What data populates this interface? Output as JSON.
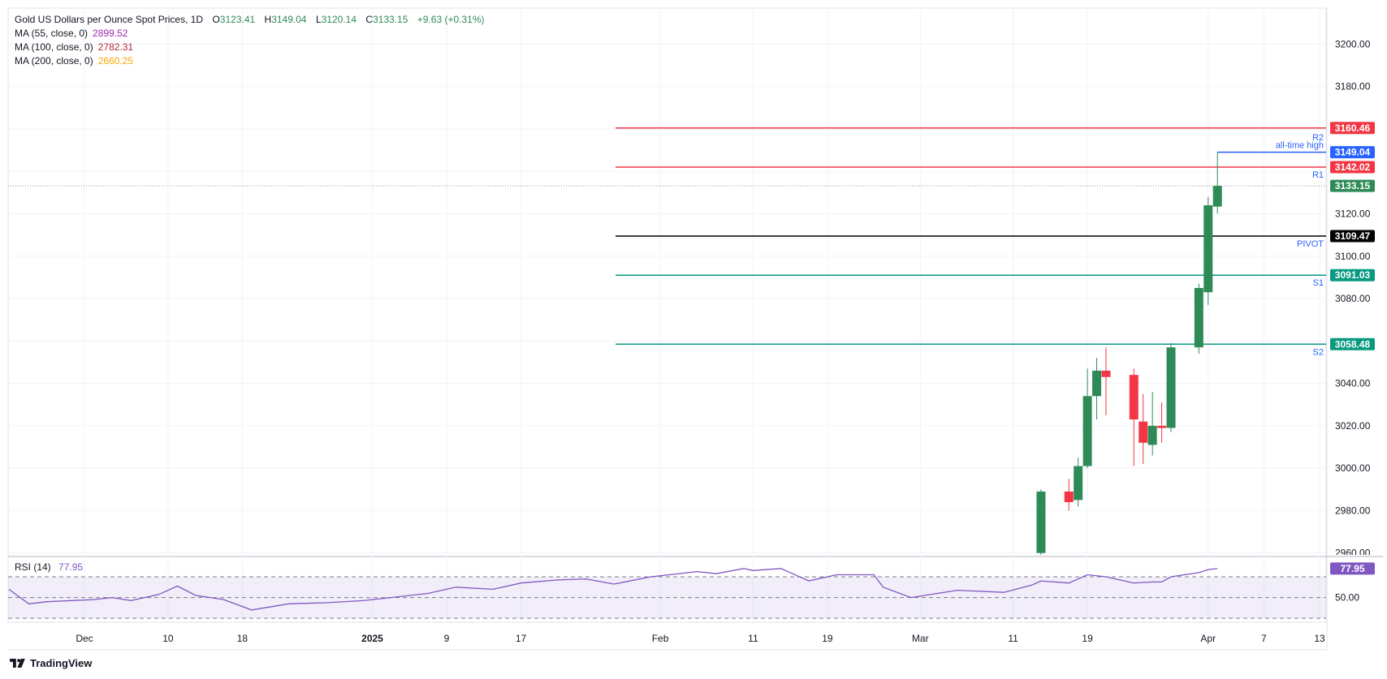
{
  "header": {
    "symbol": "Gold US Dollars per Ounce Spot Prices, 1D",
    "open_label": "O",
    "open": "3123.41",
    "high_label": "H",
    "high": "3149.04",
    "low_label": "L",
    "low": "3120.14",
    "close_label": "C",
    "close": "3133.15",
    "change": "+9.63 (+0.31%)"
  },
  "indicators": [
    {
      "label": "MA (55, close, 0)",
      "value": "2899.52",
      "color": "#9c27b0"
    },
    {
      "label": "MA (100, close, 0)",
      "value": "2782.31",
      "color": "#b22833"
    },
    {
      "label": "MA (200, close, 0)",
      "value": "2660.25",
      "color": "#f7a600"
    }
  ],
  "rsi": {
    "label": "RSI (14)",
    "value": "77.95",
    "mid_label": "50.00",
    "color": "#7e57c2"
  },
  "brand": {
    "name": "TradingView",
    "logo_icon": "tradingview-logo-icon"
  },
  "colors": {
    "up": "#2e8b57",
    "down": "#f23645",
    "resistance": "#f23645",
    "support": "#089981",
    "pivot": "#000000",
    "ath": "#2962ff"
  },
  "chart_data": {
    "type": "candlestick",
    "y_ticks": [
      "3200.00",
      "3180.00",
      "3160.00",
      "3140.00",
      "3120.00",
      "3100.00",
      "3080.00",
      "3060.00",
      "3040.00",
      "3020.00",
      "3000.00",
      "2980.00",
      "2960.00"
    ],
    "y_ticks_hidden": [
      "3160.00",
      "3140.00",
      "3060.00"
    ],
    "ylim": [
      2959,
      3217
    ],
    "x_ticks": [
      {
        "label": "Dec",
        "date": "2024-12-01",
        "bold": false
      },
      {
        "label": "10",
        "date": "2024-12-10",
        "bold": false
      },
      {
        "label": "18",
        "date": "2024-12-18",
        "bold": false
      },
      {
        "label": "2025",
        "date": "2025-01-01",
        "bold": true
      },
      {
        "label": "9",
        "date": "2025-01-09",
        "bold": false
      },
      {
        "label": "17",
        "date": "2025-01-17",
        "bold": false
      },
      {
        "label": "Feb",
        "date": "2025-02-01",
        "bold": false
      },
      {
        "label": "11",
        "date": "2025-02-11",
        "bold": false
      },
      {
        "label": "19",
        "date": "2025-02-19",
        "bold": false
      },
      {
        "label": "Mar",
        "date": "2025-03-01",
        "bold": false
      },
      {
        "label": "11",
        "date": "2025-03-11",
        "bold": false
      },
      {
        "label": "19",
        "date": "2025-03-19",
        "bold": false
      },
      {
        "label": "Apr",
        "date": "2025-04-01",
        "bold": false
      },
      {
        "label": "7",
        "date": "2025-04-07",
        "bold": false
      },
      {
        "label": "13",
        "date": "2025-04-13",
        "bold": false
      }
    ],
    "candles": [
      {
        "date": "2025-03-14",
        "open": 2960,
        "high": 2990,
        "low": 2955,
        "close": 2989
      },
      {
        "date": "2025-03-17",
        "open": 2989,
        "high": 2995,
        "low": 2980,
        "close": 2984
      },
      {
        "date": "2025-03-18",
        "open": 2985,
        "high": 3005,
        "low": 2982,
        "close": 3001
      },
      {
        "date": "2025-03-19",
        "open": 3001,
        "high": 3047,
        "low": 3000,
        "close": 3034
      },
      {
        "date": "2025-03-20",
        "open": 3034,
        "high": 3052,
        "low": 3023,
        "close": 3046
      },
      {
        "date": "2025-03-21",
        "open": 3046,
        "high": 3057,
        "low": 3025,
        "close": 3043
      },
      {
        "date": "2025-03-24",
        "open": 3044,
        "high": 3047,
        "low": 3001,
        "close": 3023
      },
      {
        "date": "2025-03-25",
        "open": 3022,
        "high": 3035,
        "low": 3002,
        "close": 3012
      },
      {
        "date": "2025-03-26",
        "open": 3011,
        "high": 3036,
        "low": 3006,
        "close": 3020
      },
      {
        "date": "2025-03-27",
        "open": 3020,
        "high": 3031,
        "low": 3012,
        "close": 3019
      },
      {
        "date": "2025-03-28",
        "open": 3019,
        "high": 3059,
        "low": 3017,
        "close": 3057
      },
      {
        "date": "2025-03-31",
        "open": 3057,
        "high": 3087,
        "low": 3054,
        "close": 3085
      },
      {
        "date": "2025-04-01",
        "open": 3083,
        "high": 3128,
        "low": 3077,
        "close": 3124
      },
      {
        "date": "2025-04-02",
        "open": 3123.41,
        "high": 3149.04,
        "low": 3120.14,
        "close": 3133.15
      }
    ],
    "levels": [
      {
        "name": "R2",
        "value": 3160.46,
        "label": "3160.46",
        "tag": "R2",
        "color": "#f23645"
      },
      {
        "name": "all-time high",
        "value": 3149.04,
        "label": "3149.04",
        "tag": "all-time high",
        "color": "#2962ff"
      },
      {
        "name": "R1",
        "value": 3142.02,
        "label": "3142.02",
        "tag": "R1",
        "color": "#f23645"
      },
      {
        "name": "PIVOT",
        "value": 3109.47,
        "label": "3109.47",
        "tag": "PIVOT",
        "color": "#000000"
      },
      {
        "name": "S1",
        "value": 3091.03,
        "label": "3091.03",
        "tag": "S1",
        "color": "#089981"
      },
      {
        "name": "S2",
        "value": 3058.48,
        "label": "3058.48",
        "tag": "S2",
        "color": "#089981"
      }
    ],
    "last_price": {
      "value": 3133.15,
      "label": "3133.15"
    },
    "rsi_series": [
      {
        "date": "2024-11-22",
        "v": 58
      },
      {
        "date": "2024-11-25",
        "v": 44
      },
      {
        "date": "2024-11-27",
        "v": 46
      },
      {
        "date": "2024-12-02",
        "v": 48
      },
      {
        "date": "2024-12-04",
        "v": 50
      },
      {
        "date": "2024-12-06",
        "v": 47
      },
      {
        "date": "2024-12-09",
        "v": 53
      },
      {
        "date": "2024-12-11",
        "v": 61
      },
      {
        "date": "2024-12-13",
        "v": 52
      },
      {
        "date": "2024-12-16",
        "v": 48
      },
      {
        "date": "2024-12-19",
        "v": 38
      },
      {
        "date": "2024-12-23",
        "v": 44
      },
      {
        "date": "2024-12-27",
        "v": 45
      },
      {
        "date": "2024-12-31",
        "v": 47
      },
      {
        "date": "2025-01-03",
        "v": 50
      },
      {
        "date": "2025-01-07",
        "v": 54
      },
      {
        "date": "2025-01-10",
        "v": 60
      },
      {
        "date": "2025-01-14",
        "v": 58
      },
      {
        "date": "2025-01-17",
        "v": 64
      },
      {
        "date": "2025-01-21",
        "v": 67
      },
      {
        "date": "2025-01-24",
        "v": 68
      },
      {
        "date": "2025-01-27",
        "v": 63
      },
      {
        "date": "2025-01-31",
        "v": 70
      },
      {
        "date": "2025-02-05",
        "v": 75
      },
      {
        "date": "2025-02-07",
        "v": 73
      },
      {
        "date": "2025-02-10",
        "v": 78
      },
      {
        "date": "2025-02-11",
        "v": 76
      },
      {
        "date": "2025-02-14",
        "v": 78
      },
      {
        "date": "2025-02-17",
        "v": 66
      },
      {
        "date": "2025-02-20",
        "v": 72
      },
      {
        "date": "2025-02-24",
        "v": 72
      },
      {
        "date": "2025-02-25",
        "v": 60
      },
      {
        "date": "2025-02-28",
        "v": 50
      },
      {
        "date": "2025-03-05",
        "v": 57
      },
      {
        "date": "2025-03-10",
        "v": 55
      },
      {
        "date": "2025-03-13",
        "v": 62
      },
      {
        "date": "2025-03-14",
        "v": 66
      },
      {
        "date": "2025-03-17",
        "v": 64
      },
      {
        "date": "2025-03-19",
        "v": 72
      },
      {
        "date": "2025-03-21",
        "v": 70
      },
      {
        "date": "2025-03-24",
        "v": 64
      },
      {
        "date": "2025-03-26",
        "v": 65
      },
      {
        "date": "2025-03-27",
        "v": 65
      },
      {
        "date": "2025-03-28",
        "v": 70
      },
      {
        "date": "2025-03-31",
        "v": 74
      },
      {
        "date": "2025-04-01",
        "v": 77
      },
      {
        "date": "2025-04-02",
        "v": 77.95
      }
    ],
    "rsi_levels": [
      70,
      50,
      30
    ],
    "rsi_ylim": [
      27,
      88
    ]
  }
}
